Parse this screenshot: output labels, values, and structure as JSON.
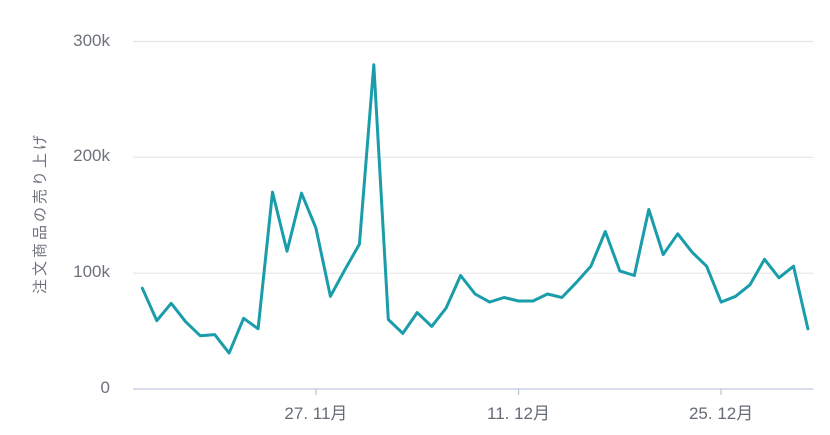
{
  "chart_data": {
    "type": "line",
    "title": "",
    "xlabel": "",
    "ylabel": "注文商品の売り上げ",
    "ylim": [
      0,
      300000
    ],
    "grid": "horizontal",
    "legend": "none",
    "y_ticks": [
      {
        "value": 0,
        "label": "0"
      },
      {
        "value": 100000,
        "label": "100k"
      },
      {
        "value": 200000,
        "label": "200k"
      },
      {
        "value": 300000,
        "label": "300k"
      }
    ],
    "x_ticks": [
      {
        "index": 12,
        "label": "27. 11月"
      },
      {
        "index": 26,
        "label": "11. 12月"
      },
      {
        "index": 40,
        "label": "25. 12月"
      }
    ],
    "x": [
      "15.11",
      "16.11",
      "17.11",
      "18.11",
      "19.11",
      "20.11",
      "21.11",
      "22.11",
      "23.11",
      "24.11",
      "25.11",
      "26.11",
      "27.11",
      "28.11",
      "29.11",
      "30.11",
      "01.12",
      "02.12",
      "03.12",
      "04.12",
      "05.12",
      "06.12",
      "07.12",
      "08.12",
      "09.12",
      "10.12",
      "11.12",
      "12.12",
      "13.12",
      "14.12",
      "15.12",
      "16.12",
      "17.12",
      "18.12",
      "19.12",
      "20.12",
      "21.12",
      "22.12",
      "23.12",
      "24.12",
      "25.12",
      "26.12",
      "27.12",
      "28.12",
      "29.12",
      "30.12",
      "31.12"
    ],
    "series": [
      {
        "name": "注文商品の売り上げ",
        "values": [
          87000,
          59000,
          74000,
          58000,
          46000,
          47000,
          31000,
          61000,
          52000,
          170000,
          119000,
          169000,
          139000,
          80000,
          103000,
          125000,
          280000,
          60000,
          48000,
          66000,
          54000,
          70000,
          98000,
          82000,
          75000,
          79000,
          76000,
          76000,
          82000,
          79000,
          92000,
          106000,
          136000,
          102000,
          98000,
          155000,
          116000,
          134000,
          118000,
          106000,
          75000,
          80000,
          90000,
          112000,
          96000,
          106000,
          52000
        ]
      }
    ],
    "colors": {
      "line": "#1a9daa",
      "grid": "#e6e6e8",
      "axis_line": "#ccd4e6",
      "tick_mark": "#b9c2d4",
      "label_text": "#6e727b"
    }
  }
}
